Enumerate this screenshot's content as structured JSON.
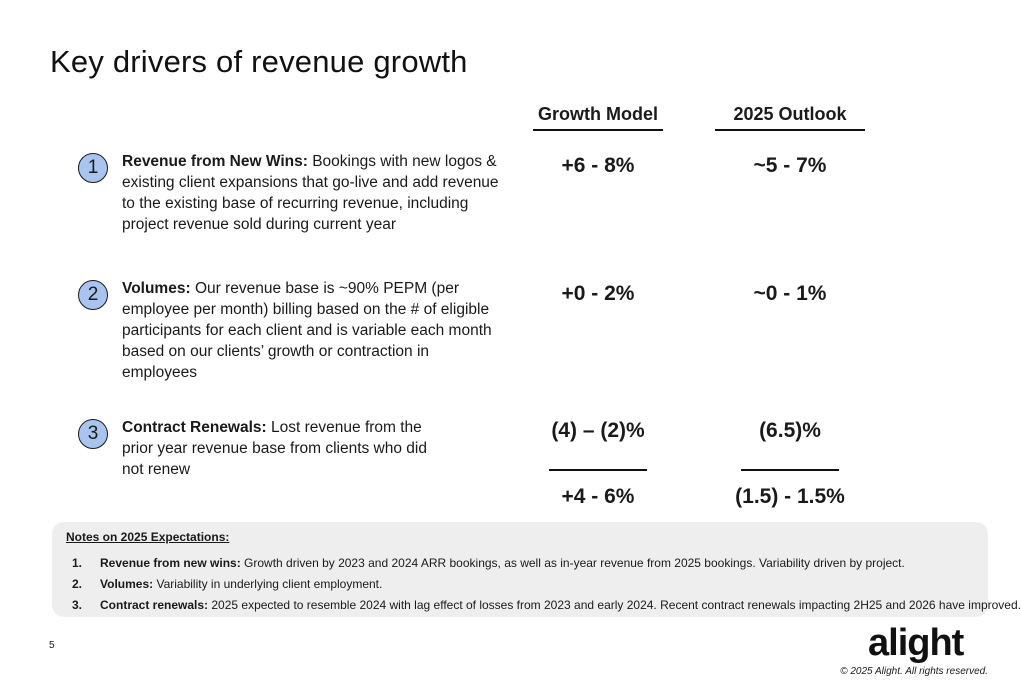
{
  "title": "Key drivers of revenue growth",
  "columns": {
    "growth_model": "Growth Model",
    "outlook": "2025 Outlook"
  },
  "drivers": [
    {
      "number": "1",
      "label": "Revenue from New Wins:",
      "text": "Bookings with new logos & existing client expansions that go-live and add revenue to the existing base of recurring revenue, including project revenue sold during current year",
      "growth_model": "+6 - 8%",
      "outlook": "~5 - 7%"
    },
    {
      "number": "2",
      "label": "Volumes:",
      "text": "Our revenue base is ~90% PEPM (per employee per month) billing based on the # of eligible participants for each client and is variable each month based on our clients’ growth or contraction in employees",
      "growth_model": "+0 - 2%",
      "outlook": "~0 - 1%"
    },
    {
      "number": "3",
      "label": "Contract Renewals:",
      "text": "Lost revenue from the prior year revenue base from clients who did not renew",
      "growth_model": "(4) – (2)%",
      "outlook": "(6.5)%"
    }
  ],
  "totals": {
    "growth_model": "+4 - 6%",
    "outlook": "(1.5) - 1.5%"
  },
  "notes": {
    "title": "Notes on 2025 Expectations:",
    "items": [
      {
        "num": "1.",
        "label": "Revenue from new wins:",
        "text": "Growth driven by 2023 and 2024 ARR bookings, as well as in-year revenue from 2025 bookings. Variability driven by project."
      },
      {
        "num": "2.",
        "label": "Volumes:",
        "text": "Variability in underlying client employment."
      },
      {
        "num": "3.",
        "label": "Contract renewals:",
        "text": "2025 expected to resemble 2024 with lag effect of losses from 2023 and early 2024. Recent contract renewals impacting 2H25 and 2026 have improved."
      }
    ]
  },
  "page_number": "5",
  "logo": "alight",
  "copyright": "© 2025 Alight. All rights reserved."
}
